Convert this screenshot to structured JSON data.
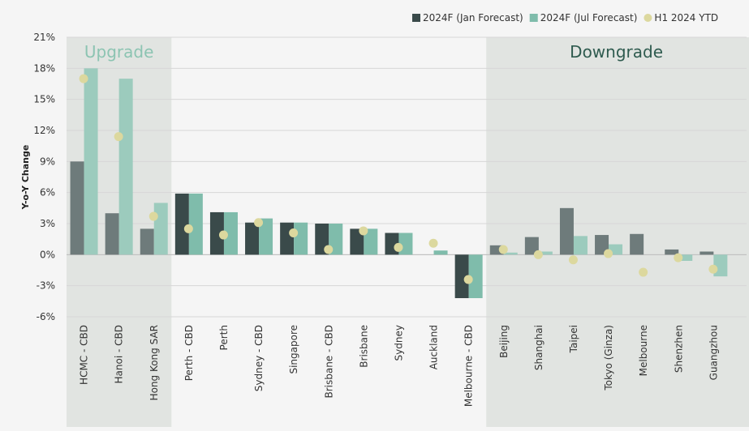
{
  "chart_data": {
    "type": "bar",
    "ylabel": "Y-o-Y Change",
    "ylim": [
      -6,
      21
    ],
    "yticks": [
      -6,
      -3,
      0,
      3,
      6,
      9,
      12,
      15,
      18,
      21
    ],
    "ytick_format": "percent",
    "grid": true,
    "legend_placement": "top-right",
    "categories": [
      "HCMC - CBD",
      "Hanoi - CBD",
      "Hong Kong SAR",
      "Perth - CBD",
      "Perth",
      "Sydney - CBD",
      "Singapore",
      "Brisbane - CBD",
      "Brisbane",
      "Sydney",
      "Auckland",
      "Melbourne - CBD",
      "Beijing",
      "Shanghai",
      "Taipei",
      "Tokyo (Ginza)",
      "Melbourne",
      "Shenzhen",
      "Guangzhou"
    ],
    "series": [
      {
        "name": "2024F (Jan Forecast)",
        "kind": "bar",
        "color": "#3a4a4a",
        "upgrade_color": "#6e7b7b",
        "downgrade_color": "#6e7b7b",
        "values": [
          9.0,
          4.0,
          2.5,
          5.9,
          4.1,
          3.1,
          3.1,
          3.0,
          2.5,
          2.1,
          0.0,
          -4.2,
          0.9,
          1.7,
          4.5,
          1.9,
          2.0,
          0.5,
          0.3
        ]
      },
      {
        "name": "2024F (Jul Forecast)",
        "kind": "bar",
        "color": "#7fbcab",
        "upgrade_color": "#9ccbbd",
        "downgrade_color": "#9ccbbd",
        "values": [
          18.0,
          17.0,
          5.0,
          5.9,
          4.1,
          3.5,
          3.1,
          3.0,
          2.5,
          2.1,
          0.4,
          -4.2,
          0.2,
          0.3,
          1.8,
          1.0,
          0.0,
          -0.6,
          -2.1
        ]
      },
      {
        "name": "H1 2024 YTD",
        "kind": "point",
        "color": "#dcd89e",
        "values": [
          17.0,
          11.4,
          3.7,
          2.5,
          1.9,
          3.1,
          2.1,
          0.5,
          2.3,
          0.7,
          1.1,
          -2.4,
          0.5,
          0.0,
          -0.5,
          0.1,
          -1.7,
          -0.3,
          -1.4
        ]
      }
    ],
    "regions": [
      {
        "label": "Upgrade",
        "start": 0,
        "end": 2,
        "bg": "#e1e4e1",
        "text_color": "#8cc4b2"
      },
      {
        "label": "Downgrade",
        "start": 12,
        "end": 18,
        "bg": "#e1e4e1",
        "text_color": "#2f5b4f"
      }
    ]
  }
}
